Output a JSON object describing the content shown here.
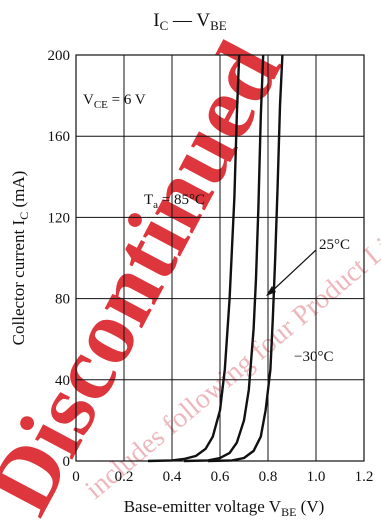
{
  "watermark": {
    "main_text": "Discontinued",
    "minor_text": "includes following four Product Lifecycle types",
    "color": "#d9141c"
  },
  "chart_data": {
    "type": "line",
    "title": "IC — VBE",
    "title_main": "I",
    "title_main_sub": "C",
    "title_sep": " — V",
    "title_sep_sub": "BE",
    "xlabel": "Base-emitter voltage",
    "xlabel_symbol": "V",
    "xlabel_symbol_sub": "BE",
    "xlabel_unit": "(V)",
    "ylabel": "Collector current",
    "ylabel_symbol": "I",
    "ylabel_symbol_sub": "C",
    "ylabel_unit": "(mA)",
    "xlim": [
      0,
      1.2
    ],
    "ylim": [
      0,
      200
    ],
    "x_ticks": [
      0,
      0.2,
      0.4,
      0.6,
      0.8,
      1.0,
      1.2
    ],
    "x_tick_labels": [
      "0",
      "0.2",
      "0.4",
      "0.6",
      "0.8",
      "1.0",
      "1.2"
    ],
    "y_ticks": [
      0,
      40,
      80,
      120,
      160,
      200
    ],
    "y_tick_labels": [
      "0",
      "40",
      "80",
      "120",
      "160",
      "200"
    ],
    "grid": true,
    "condition_prefix": "V",
    "condition_sub": "CE",
    "condition_value": " = 6 V",
    "series": [
      {
        "name": "Ta = 85°C",
        "x": [
          0.3,
          0.4,
          0.45,
          0.5,
          0.54,
          0.57,
          0.6,
          0.62,
          0.64,
          0.66,
          0.67,
          0.68
        ],
        "y": [
          0,
          0.3,
          1,
          2.5,
          6,
          12,
          25,
          45,
          80,
          130,
          170,
          200
        ]
      },
      {
        "name": "25°C",
        "x": [
          0.45,
          0.55,
          0.6,
          0.64,
          0.67,
          0.7,
          0.72,
          0.74,
          0.75,
          0.76,
          0.77,
          0.78
        ],
        "y": [
          0,
          0.3,
          1.5,
          4,
          9,
          20,
          35,
          65,
          90,
          125,
          170,
          200
        ]
      },
      {
        "name": "−30°C",
        "x": [
          0.55,
          0.65,
          0.7,
          0.74,
          0.77,
          0.79,
          0.81,
          0.82,
          0.83,
          0.84,
          0.85,
          0.86
        ],
        "y": [
          0,
          0.3,
          1.5,
          5,
          12,
          25,
          45,
          70,
          100,
          135,
          175,
          200
        ]
      }
    ],
    "annotations": [
      {
        "label_prefix": "T",
        "label_sub": "a",
        "label_rest": " = 85°C"
      },
      {
        "label": "25°C"
      },
      {
        "label": "−30°C"
      }
    ]
  }
}
